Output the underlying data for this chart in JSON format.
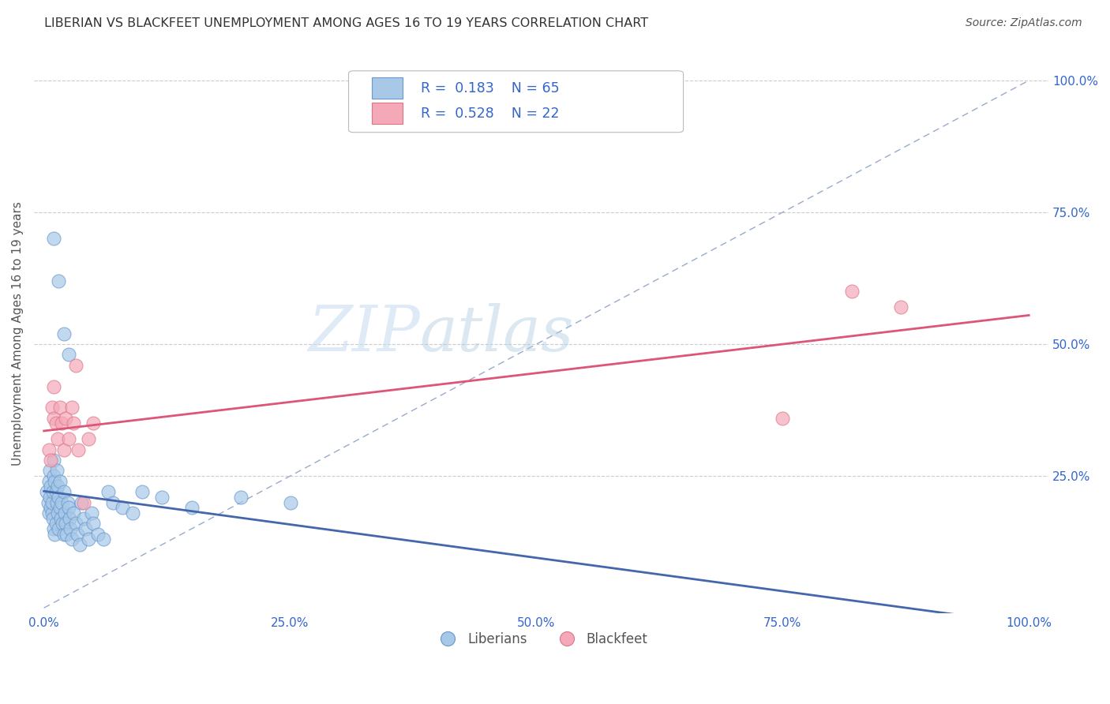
{
  "title": "LIBERIAN VS BLACKFEET UNEMPLOYMENT AMONG AGES 16 TO 19 YEARS CORRELATION CHART",
  "source": "Source: ZipAtlas.com",
  "ylabel": "Unemployment Among Ages 16 to 19 years",
  "liberian_R": 0.183,
  "liberian_N": 65,
  "blackfeet_R": 0.528,
  "blackfeet_N": 22,
  "liberian_color": "#a8c8e8",
  "blackfeet_color": "#f4a8b8",
  "liberian_edge_color": "#6699cc",
  "blackfeet_edge_color": "#dd7788",
  "trend_liberian_color": "#4466aa",
  "trend_blackfeet_color": "#dd5577",
  "diag_color": "#99aacc",
  "background_color": "#ffffff",
  "grid_color": "#cccccc",
  "title_color": "#333333",
  "source_color": "#555555",
  "legend_R_color": "#3366cc",
  "tick_color": "#3366cc",
  "label_color": "#555555",
  "liberian_x": [
    0.003,
    0.004,
    0.005,
    0.005,
    0.006,
    0.006,
    0.007,
    0.007,
    0.008,
    0.008,
    0.009,
    0.009,
    0.01,
    0.01,
    0.01,
    0.011,
    0.011,
    0.012,
    0.012,
    0.013,
    0.013,
    0.014,
    0.014,
    0.015,
    0.015,
    0.016,
    0.016,
    0.017,
    0.018,
    0.019,
    0.02,
    0.02,
    0.021,
    0.022,
    0.023,
    0.024,
    0.025,
    0.026,
    0.027,
    0.028,
    0.03,
    0.032,
    0.034,
    0.036,
    0.038,
    0.04,
    0.042,
    0.045,
    0.048,
    0.05,
    0.055,
    0.06,
    0.065,
    0.07,
    0.08,
    0.09,
    0.1,
    0.12,
    0.15,
    0.2,
    0.25,
    0.02,
    0.025,
    0.015,
    0.01
  ],
  "liberian_y": [
    0.22,
    0.2,
    0.24,
    0.18,
    0.21,
    0.26,
    0.19,
    0.23,
    0.18,
    0.2,
    0.17,
    0.22,
    0.15,
    0.25,
    0.28,
    0.14,
    0.24,
    0.22,
    0.16,
    0.2,
    0.26,
    0.18,
    0.23,
    0.15,
    0.21,
    0.19,
    0.24,
    0.17,
    0.2,
    0.16,
    0.14,
    0.22,
    0.18,
    0.16,
    0.14,
    0.2,
    0.19,
    0.17,
    0.15,
    0.13,
    0.18,
    0.16,
    0.14,
    0.12,
    0.2,
    0.17,
    0.15,
    0.13,
    0.18,
    0.16,
    0.14,
    0.13,
    0.22,
    0.2,
    0.19,
    0.18,
    0.22,
    0.21,
    0.19,
    0.21,
    0.2,
    0.52,
    0.48,
    0.62,
    0.7
  ],
  "blackfeet_x": [
    0.005,
    0.007,
    0.008,
    0.01,
    0.01,
    0.012,
    0.014,
    0.016,
    0.018,
    0.02,
    0.022,
    0.025,
    0.028,
    0.03,
    0.032,
    0.035,
    0.04,
    0.045,
    0.05,
    0.75,
    0.82,
    0.87
  ],
  "blackfeet_y": [
    0.3,
    0.28,
    0.38,
    0.36,
    0.42,
    0.35,
    0.32,
    0.38,
    0.35,
    0.3,
    0.36,
    0.32,
    0.38,
    0.35,
    0.46,
    0.3,
    0.2,
    0.32,
    0.35,
    0.36,
    0.6,
    0.57
  ],
  "xticks": [
    0.0,
    0.25,
    0.5,
    0.75,
    1.0
  ],
  "yticks": [
    0.25,
    0.5,
    0.75,
    1.0
  ],
  "xtick_labels": [
    "0.0%",
    "25.0%",
    "50.0%",
    "75.0%",
    "100.0%"
  ],
  "ytick_labels": [
    "25.0%",
    "50.0%",
    "75.0%",
    "100.0%"
  ]
}
